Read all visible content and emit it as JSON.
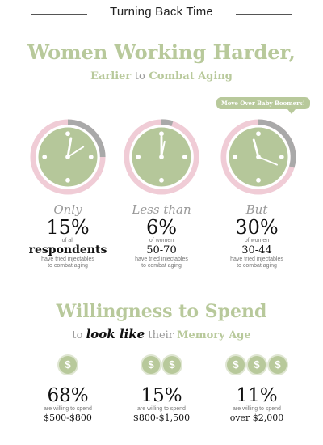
{
  "header": {
    "title": "Turning Back Time"
  },
  "section1": {
    "title": "Women Working Harder,",
    "subtitle_a": "Earlier",
    "subtitle_b": "to",
    "subtitle_c": "Combat Aging",
    "callout": "Move Over Baby Boomers!"
  },
  "stats": [
    {
      "qualifier": "Only",
      "percent": "15%",
      "line1": "of all",
      "group": "respondents",
      "note1": "have tried injectables",
      "note2": "to combat aging"
    },
    {
      "qualifier": "Less than",
      "percent": "6%",
      "line1": "of women",
      "group": "50-70",
      "note1": "have tried injectables",
      "note2": "to combat aging"
    },
    {
      "qualifier": "But",
      "percent": "30%",
      "line1": "of women",
      "group": "30-44",
      "note1": "have tried injectables",
      "note2": "to combat aging"
    }
  ],
  "section2": {
    "title": "Willingness to Spend",
    "sub_a": "to",
    "sub_b": "look like",
    "sub_c": "their",
    "sub_d": "Memory Age"
  },
  "spend": [
    {
      "coins": 1,
      "percent": "68%",
      "note": "are willing to spend",
      "range": "$500-$800"
    },
    {
      "coins": 2,
      "percent": "15%",
      "note": "are willing to spend",
      "range": "$800-$1,500"
    },
    {
      "coins": 3,
      "percent": "11%",
      "note": "are willing to spend",
      "range": "over $2,000"
    }
  ],
  "coin_symbol": "$",
  "colors": {
    "accent_green": "#b8c99b",
    "clock_green": "#b5c79a",
    "ring_pink": "#f0ccd6",
    "ring_gray": "#a9a9a9"
  }
}
